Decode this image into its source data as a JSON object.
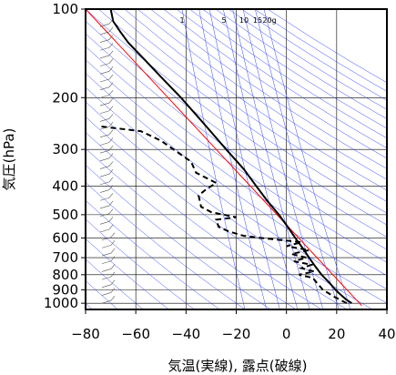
{
  "chart_data": {
    "type": "line",
    "title": "",
    "xlabel": "気温(実線), 露点(破線)",
    "ylabel": "気圧(hPa)",
    "xlim": [
      -80,
      40
    ],
    "ylim": [
      1050,
      100
    ],
    "y_scale": "log",
    "x_ticks": [
      -80,
      -60,
      -40,
      -20,
      0,
      20,
      40
    ],
    "x_tick_labels": [
      "−80",
      "−60",
      "−40",
      "−20",
      "0",
      "20",
      "40"
    ],
    "y_ticks": [
      100,
      200,
      300,
      400,
      500,
      600,
      700,
      800,
      900,
      1000
    ],
    "y_tick_labels": [
      "100",
      "200",
      "300",
      "400",
      "500",
      "600",
      "700",
      "800",
      "900",
      "1000"
    ],
    "grid": true,
    "mixing_ratio_labels": [
      "1",
      "5",
      "10",
      "15",
      "20g"
    ],
    "mixing_ratio_values": [
      1,
      5,
      10,
      15,
      20
    ],
    "series": [
      {
        "style": "solid",
        "color": "#000000",
        "points": [
          [
            1000,
            26
          ],
          [
            975,
            24
          ],
          [
            950,
            22.5
          ],
          [
            925,
            21
          ],
          [
            900,
            19.5
          ],
          [
            850,
            17
          ],
          [
            800,
            14
          ],
          [
            750,
            11.5
          ],
          [
            700,
            9
          ],
          [
            650,
            6.5
          ],
          [
            600,
            3.5
          ],
          [
            550,
            0.5
          ],
          [
            500,
            -3
          ],
          [
            450,
            -7.5
          ],
          [
            400,
            -12
          ],
          [
            350,
            -17
          ],
          [
            300,
            -24
          ],
          [
            250,
            -32
          ],
          [
            200,
            -42
          ],
          [
            170,
            -50
          ],
          [
            150,
            -56
          ],
          [
            130,
            -63
          ],
          [
            120,
            -66
          ],
          [
            110,
            -69
          ],
          [
            100,
            -70
          ]
        ]
      },
      {
        "style": "dashed",
        "color": "#000000",
        "points": [
          [
            1000,
            24
          ],
          [
            950,
            19
          ],
          [
            900,
            14.5
          ],
          [
            850,
            12
          ],
          [
            820,
            10.5
          ],
          [
            800,
            5
          ],
          [
            780,
            11
          ],
          [
            760,
            6
          ],
          [
            740,
            10
          ],
          [
            720,
            3
          ],
          [
            700,
            8
          ],
          [
            680,
            2
          ],
          [
            660,
            9
          ],
          [
            640,
            0
          ],
          [
            620,
            6
          ],
          [
            600,
            -10
          ],
          [
            590,
            -17
          ],
          [
            580,
            -20
          ],
          [
            570,
            -23
          ],
          [
            550,
            -27
          ],
          [
            520,
            -28
          ],
          [
            510,
            -20
          ],
          [
            500,
            -25
          ],
          [
            490,
            -30
          ],
          [
            470,
            -34
          ],
          [
            430,
            -35
          ],
          [
            410,
            -32
          ],
          [
            390,
            -28
          ],
          [
            360,
            -36
          ],
          [
            330,
            -38
          ],
          [
            300,
            -45
          ],
          [
            280,
            -50
          ],
          [
            260,
            -58
          ],
          [
            250,
            -75
          ]
        ]
      }
    ],
    "reference_lines": [
      {
        "style": "solid",
        "color": "#ff0000",
        "points": [
          [
            1020,
            30
          ],
          [
            100,
            -80
          ]
        ]
      }
    ]
  }
}
